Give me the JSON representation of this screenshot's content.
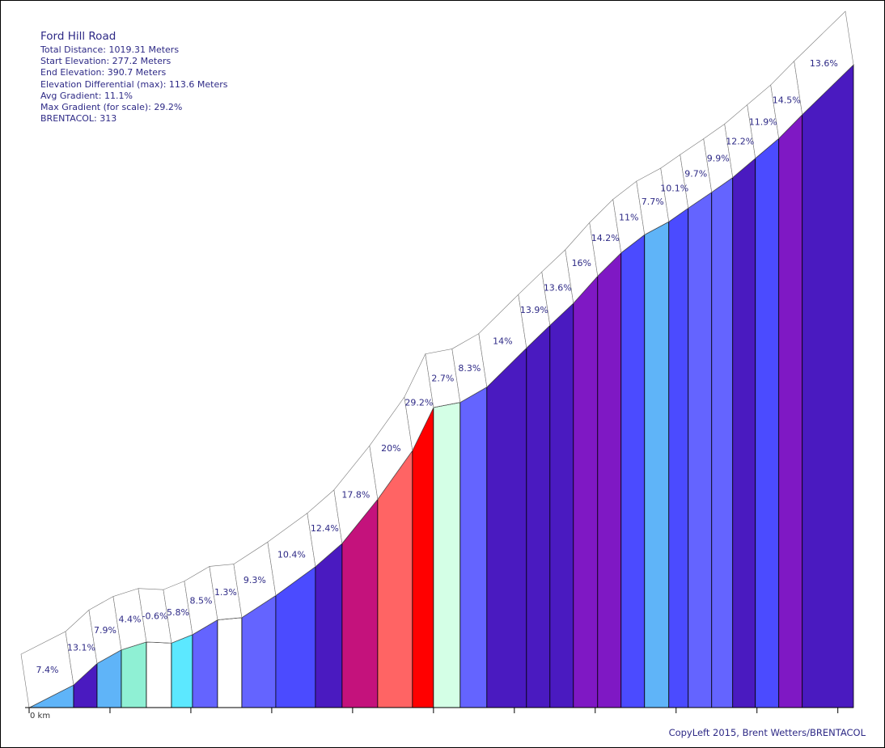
{
  "info": {
    "title": "Ford Hill Road",
    "total_distance": "Total Distance: 1019.31 Meters",
    "start_elevation": "Start Elevation: 277.2 Meters",
    "end_elevation": "End Elevation: 390.7 Meters",
    "elevation_diff": "Elevation Differential (max): 113.6 Meters",
    "avg_gradient": "Avg Gradient: 11.1%",
    "max_gradient": "Max Gradient (for scale): 29.2%",
    "brentacol": "BRENTACOL: 313"
  },
  "credit": "CopyLeft 2015, Brent Wetters/BRENTACOL",
  "chart_data": {
    "type": "area",
    "title": "Ford Hill Road",
    "xlabel": "",
    "ylabel": "",
    "x_axis_label": "0 km",
    "x_unit": "m",
    "y_unit": "m",
    "ylim": [
      277.2,
      390.7
    ],
    "xlim": [
      0,
      1019.31
    ],
    "segments": [
      {
        "x0": 0,
        "x1": 55,
        "grad": "7.4%",
        "e0": 277.2,
        "e1": 281.2,
        "color": "#5fb4f8"
      },
      {
        "x0": 55,
        "x1": 84,
        "grad": "13.1%",
        "e0": 281.2,
        "e1": 285.0,
        "color": "#4a1ac0"
      },
      {
        "x0": 84,
        "x1": 114,
        "grad": "7.9%",
        "e0": 285.0,
        "e1": 287.4,
        "color": "#5fb4f8"
      },
      {
        "x0": 114,
        "x1": 145,
        "grad": "4.4%",
        "e0": 287.4,
        "e1": 288.8,
        "color": "#8ff0d4"
      },
      {
        "x0": 145,
        "x1": 176,
        "grad": "-0.6%",
        "e0": 288.8,
        "e1": 288.6,
        "color": "#ffffff"
      },
      {
        "x0": 176,
        "x1": 202,
        "grad": "5.8%",
        "e0": 288.6,
        "e1": 290.1,
        "color": "#5ce8ff"
      },
      {
        "x0": 202,
        "x1": 233,
        "grad": "8.5%",
        "e0": 290.1,
        "e1": 292.7,
        "color": "#6464ff"
      },
      {
        "x0": 233,
        "x1": 263,
        "grad": "1.3%",
        "e0": 292.7,
        "e1": 293.1,
        "color": "#ffffff"
      },
      {
        "x0": 263,
        "x1": 305,
        "grad": "9.3%",
        "e0": 293.1,
        "e1": 297.0,
        "color": "#6464ff"
      },
      {
        "x0": 305,
        "x1": 354,
        "grad": "10.4%",
        "e0": 297.0,
        "e1": 302.1,
        "color": "#4b4bff"
      },
      {
        "x0": 354,
        "x1": 387,
        "grad": "12.4%",
        "e0": 302.1,
        "e1": 306.2,
        "color": "#4a1ac0"
      },
      {
        "x0": 387,
        "x1": 431,
        "grad": "17.8%",
        "e0": 306.2,
        "e1": 314.0,
        "color": "#c4127c"
      },
      {
        "x0": 431,
        "x1": 474,
        "grad": "20%",
        "e0": 314.0,
        "e1": 322.6,
        "color": "#ff6464"
      },
      {
        "x0": 474,
        "x1": 500,
        "grad": "29.2%",
        "e0": 322.6,
        "e1": 330.2,
        "color": "#ff0000"
      },
      {
        "x0": 500,
        "x1": 533,
        "grad": "2.7%",
        "e0": 330.2,
        "e1": 331.1,
        "color": "#d4ffe6"
      },
      {
        "x0": 533,
        "x1": 566,
        "grad": "8.3%",
        "e0": 331.1,
        "e1": 333.8,
        "color": "#6464ff"
      },
      {
        "x0": 566,
        "x1": 615,
        "grad": "14%",
        "e0": 333.8,
        "e1": 340.7,
        "color": "#4a1ac0"
      },
      {
        "x0": 615,
        "x1": 644,
        "grad": "13.9%",
        "e0": 340.7,
        "e1": 344.7,
        "color": "#4a1ac0"
      },
      {
        "x0": 644,
        "x1": 673,
        "grad": "13.6%",
        "e0": 344.7,
        "e1": 348.6,
        "color": "#4a1ac0"
      },
      {
        "x0": 673,
        "x1": 703,
        "grad": "16%",
        "e0": 348.6,
        "e1": 353.4,
        "color": "#7f18c4"
      },
      {
        "x0": 703,
        "x1": 732,
        "grad": "14.2%",
        "e0": 353.4,
        "e1": 357.5,
        "color": "#7f18c4"
      },
      {
        "x0": 732,
        "x1": 761,
        "grad": "11%",
        "e0": 357.5,
        "e1": 360.7,
        "color": "#4b4bff"
      },
      {
        "x0": 761,
        "x1": 791,
        "grad": "7.7%",
        "e0": 360.7,
        "e1": 363.0,
        "color": "#5fb4f8"
      },
      {
        "x0": 791,
        "x1": 815,
        "grad": "10.1%",
        "e0": 363.0,
        "e1": 365.4,
        "color": "#4b4bff"
      },
      {
        "x0": 815,
        "x1": 844,
        "grad": "9.7%",
        "e0": 365.4,
        "e1": 368.2,
        "color": "#6464ff"
      },
      {
        "x0": 844,
        "x1": 870,
        "grad": "9.9%",
        "e0": 368.2,
        "e1": 370.8,
        "color": "#6464ff"
      },
      {
        "x0": 870,
        "x1": 898,
        "grad": "12.2%",
        "e0": 370.8,
        "e1": 374.2,
        "color": "#4a1ac0"
      },
      {
        "x0": 898,
        "x1": 927,
        "grad": "11.9%",
        "e0": 374.2,
        "e1": 377.7,
        "color": "#4b4bff"
      },
      {
        "x0": 927,
        "x1": 956,
        "grad": "14.5%",
        "e0": 377.7,
        "e1": 381.9,
        "color": "#7f18c4"
      },
      {
        "x0": 956,
        "x1": 1019.31,
        "grad": "13.6%",
        "e0": 381.9,
        "e1": 390.7,
        "color": "#4a1ac0"
      }
    ]
  }
}
